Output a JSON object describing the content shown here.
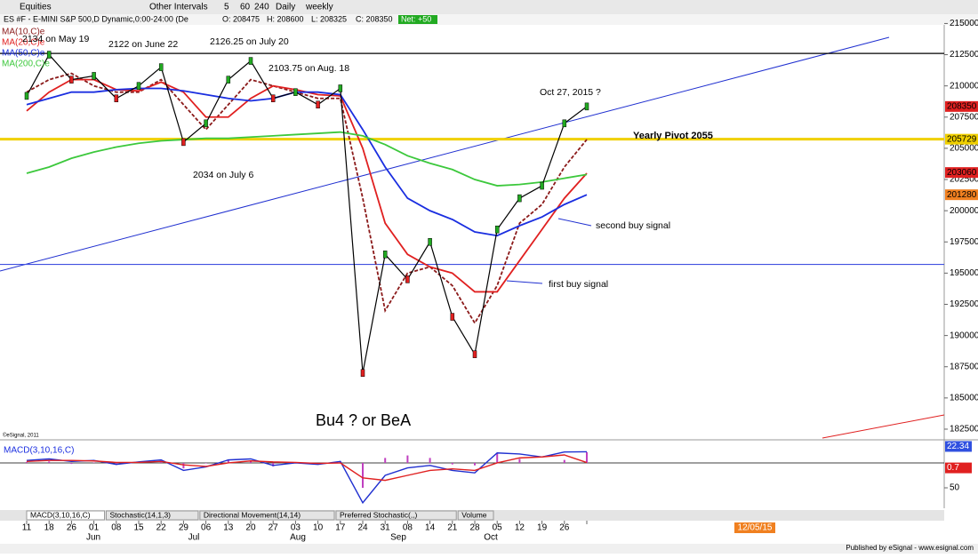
{
  "header": {
    "title": "ES #F - E-MINI S&P 500,D Dynamic,0:00-24:00 (De",
    "ohlc": [
      "O: 208475",
      "H: 208600",
      "L: 208325",
      "C: 208350"
    ],
    "net": "Net: +50"
  },
  "toolbar": {
    "items": [
      "Equities",
      "Other Intervals",
      "5",
      "60",
      "240",
      "Daily",
      "weekly"
    ]
  },
  "chart_data": {
    "type": "line",
    "color": "#000000",
    "categories": [
      "11",
      "18",
      "26",
      "01",
      "08",
      "15",
      "22",
      "29",
      "06",
      "13",
      "20",
      "27",
      "03",
      "10",
      "17",
      "24",
      "31",
      "08",
      "14",
      "21",
      "28",
      "05",
      "12",
      "19",
      "26",
      null
    ],
    "months": [
      "Jun",
      "Jul",
      "Aug",
      "Sep",
      "Oct"
    ],
    "values": [
      209200,
      212500,
      210500,
      210800,
      209000,
      210000,
      211500,
      205500,
      207000,
      210500,
      212000,
      209000,
      209500,
      208500,
      209800,
      187000,
      196500,
      194500,
      197500,
      191500,
      188500,
      198500,
      201000,
      202000,
      207000,
      208350
    ],
    "series": [
      {
        "name": "MA(10,C)e",
        "color": "#8b1a1a",
        "values": [
          209500,
          210500,
          211000,
          210000,
          209500,
          209500,
          210500,
          208500,
          206500,
          208500,
          210500,
          210000,
          209500,
          209000,
          209000,
          201000,
          192000,
          195000,
          195500,
          194000,
          191000,
          194000,
          199000,
          200500,
          203500,
          205700
        ]
      },
      {
        "name": "MA(20,C)e",
        "color": "#e02020",
        "values": [
          208000,
          209500,
          210500,
          210500,
          209700,
          209600,
          210300,
          209500,
          207500,
          207500,
          209000,
          210000,
          209700,
          209300,
          209200,
          205000,
          199000,
          196500,
          195500,
          195000,
          193500,
          193500,
          196000,
          198500,
          201000,
          203000
        ]
      },
      {
        "name": "MA(50,C)e",
        "color": "#1a2ee0",
        "values": [
          208500,
          209000,
          209500,
          209500,
          209700,
          209800,
          209800,
          209600,
          209300,
          209000,
          208800,
          209000,
          209500,
          209500,
          209300,
          206500,
          203500,
          201000,
          200000,
          199300,
          198300,
          198000,
          198800,
          199500,
          200500,
          201280
        ]
      },
      {
        "name": "MA(200,C)e",
        "color": "#3cc83c",
        "values": [
          203000,
          203500,
          204200,
          204700,
          205100,
          205400,
          205600,
          205700,
          205800,
          205800,
          205900,
          206000,
          206100,
          206200,
          206300,
          206000,
          205300,
          204400,
          203800,
          203300,
          202500,
          202000,
          202100,
          202300,
          202600,
          202900
        ]
      }
    ],
    "ylim": [
      182000,
      215600
    ],
    "yticks": [
      215000,
      212500,
      210000,
      207500,
      205000,
      202500,
      200000,
      197500,
      195000,
      192500,
      190000,
      187500,
      185000,
      182500
    ],
    "hlines": [
      {
        "value": 212600,
        "color": "#000000"
      },
      {
        "value": 205729,
        "color": "#f0d000"
      },
      {
        "value": 195700,
        "color": "#4050e0"
      }
    ],
    "last_values": [
      {
        "value": 208350,
        "color": "#e02020"
      },
      {
        "value": 205729,
        "color": "#f0d000"
      },
      {
        "value": 203060,
        "color": "#e02020"
      },
      {
        "value": 201280,
        "color": "#f08020"
      }
    ],
    "annotations": [
      "2134 on May 19",
      "2122 on June 22",
      "2126.25 on July 20",
      "2103.75 on Aug. 18",
      "2034 on July 6",
      "Oct 27, 2015 ?",
      "Yearly Pivot 2055",
      "second buy signal",
      "first buy signal",
      "Bu4 ? or  BeA",
      "©eSignal, 2011"
    ]
  },
  "macd": {
    "title": "MACD(3,10,16,C)",
    "values": [
      5,
      8,
      3,
      5,
      -3,
      2,
      6,
      -15,
      -8,
      6,
      8,
      -5,
      0,
      -3,
      3,
      -80,
      -25,
      -10,
      -5,
      -15,
      -20,
      20,
      18,
      12,
      22,
      22.34
    ],
    "signal": [
      3,
      5,
      5,
      4,
      1,
      1,
      3,
      -4,
      -7,
      0,
      4,
      2,
      1,
      -1,
      0,
      -30,
      -35,
      -25,
      -15,
      -12,
      -15,
      0,
      10,
      12,
      16,
      0.7
    ],
    "ylim": [
      -91,
      41
    ],
    "yticks": [
      {
        "value": -50,
        "label": "50"
      }
    ]
  },
  "tabs": [
    "MACD(3,10,16,C)",
    "Stochastic(14,1,3)",
    "Directional Movement(14,14)",
    "Preferred Stochastic(,,)",
    "Volume"
  ],
  "date_box": "12/05/15",
  "footer": "Published by eSignal - www.esignal.com"
}
